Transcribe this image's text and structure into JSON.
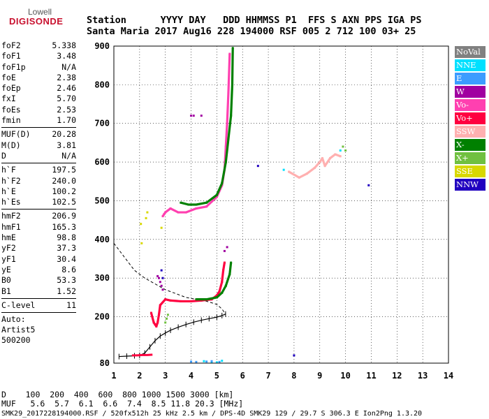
{
  "logo": {
    "line1": "Lowell",
    "line2": "DIGISONDE"
  },
  "header": {
    "line1": "Station      YYYY DAY   DDD HHMMSS P1  FFS S AXN PPS IGA PS",
    "line2": "Santa Maria 2017 Aug16 228 194000 RSF 005 2 712 100 03+ 25"
  },
  "params": {
    "group1": [
      {
        "label": "foF2",
        "value": "5.338"
      },
      {
        "label": "foF1",
        "value": "3.48"
      },
      {
        "label": "foF1p",
        "value": "N/A"
      },
      {
        "label": "foE",
        "value": "2.38"
      },
      {
        "label": "foEp",
        "value": "2.46"
      },
      {
        "label": "fxI",
        "value": "5.70"
      },
      {
        "label": "foEs",
        "value": "2.53"
      },
      {
        "label": "fmin",
        "value": "1.70"
      }
    ],
    "group2": [
      {
        "label": "MUF(D)",
        "value": "20.28"
      },
      {
        "label": "M(D)",
        "value": "3.81"
      },
      {
        "label": "D",
        "value": "N/A"
      }
    ],
    "group3": [
      {
        "label": "h`F",
        "value": "197.5"
      },
      {
        "label": "h`F2",
        "value": "240.0"
      },
      {
        "label": "h`E",
        "value": "100.2"
      },
      {
        "label": "h`Es",
        "value": "102.5"
      }
    ],
    "group4": [
      {
        "label": "hmF2",
        "value": "206.9"
      },
      {
        "label": "hmF1",
        "value": "165.3"
      },
      {
        "label": "hmE",
        "value": "98.8"
      },
      {
        "label": "yF2",
        "value": "37.3"
      },
      {
        "label": "yF1",
        "value": "30.4"
      },
      {
        "label": "yE",
        "value": "8.6"
      },
      {
        "label": "B0",
        "value": "53.3"
      },
      {
        "label": "B1",
        "value": "1.52"
      }
    ],
    "group5": [
      {
        "label": "C-level",
        "value": "11"
      }
    ]
  },
  "autoscale": {
    "line1": "Auto:",
    "line2": "Artist5",
    "line3": "500200"
  },
  "legend": [
    {
      "label": "NoVal",
      "color": "#808080"
    },
    {
      "label": "NNE",
      "color": "#00e0ff"
    },
    {
      "label": "E",
      "color": "#3c9cff"
    },
    {
      "label": "W",
      "color": "#a000a0"
    },
    {
      "label": "Vo-",
      "color": "#ff40b0"
    },
    {
      "label": "Vo+",
      "color": "#ff0040"
    },
    {
      "label": "SSW",
      "color": "#ffb0b0"
    },
    {
      "label": "X-",
      "color": "#008000"
    },
    {
      "label": "X+",
      "color": "#70c040"
    },
    {
      "label": "SSE",
      "color": "#d8d800"
    },
    {
      "label": "NNW",
      "color": "#2000c0"
    }
  ],
  "footer": {
    "line1": "D    100  200  400  600  800 1000 1500 3000 [km]",
    "line2": "MUF   5.6  5.7  6.1  6.6  7.4  8.5 11.8 20.3 [MHz]",
    "line3": "SMK29_2017228194000.RSF / 520fx512h 25 kHz 2.5 km / DPS-4D SMK29 129 / 29.7 S 306.3 E Ion2Png 1.3.20"
  },
  "chart_data": {
    "type": "scatter",
    "xlabel": "",
    "ylabel": "",
    "xlim": [
      1,
      14
    ],
    "ylim": [
      80,
      900
    ],
    "xticks": [
      1,
      2,
      3,
      4,
      5,
      6,
      7,
      8,
      9,
      10,
      11,
      12,
      13,
      14
    ],
    "yticks": [
      80,
      200,
      300,
      400,
      500,
      600,
      700,
      800,
      900
    ],
    "grid": true,
    "series": [
      {
        "name": "Vo+",
        "color": "#ff0040",
        "x": [
          2.45,
          2.55,
          2.6,
          2.65,
          2.7,
          2.75,
          2.8,
          3.0,
          3.2,
          3.6,
          4.0,
          4.4,
          4.8,
          5.0,
          5.1,
          5.2,
          5.25,
          5.3
        ],
        "y": [
          210,
          185,
          180,
          175,
          185,
          205,
          230,
          245,
          242,
          240,
          240,
          242,
          245,
          255,
          265,
          290,
          320,
          340
        ]
      },
      {
        "name": "Vo-",
        "color": "#ff40b0",
        "x": [
          2.9,
          2.95,
          3.0,
          3.2,
          3.5,
          3.8,
          4.2,
          4.6,
          5.0,
          5.2,
          5.3,
          5.35,
          5.4,
          5.45,
          5.5
        ],
        "y": [
          460,
          465,
          470,
          480,
          470,
          470,
          480,
          485,
          510,
          540,
          580,
          640,
          700,
          780,
          880
        ]
      },
      {
        "name": "X-",
        "color": "#008000",
        "x": [
          3.6,
          3.9,
          4.2,
          4.6,
          5.0,
          5.2,
          5.35,
          5.45,
          5.55,
          5.6,
          5.62
        ],
        "y": [
          495,
          490,
          490,
          495,
          515,
          545,
          600,
          660,
          720,
          800,
          895
        ]
      },
      {
        "name": "X-",
        "color": "#008000",
        "x": [
          4.2,
          4.6,
          5.0,
          5.2,
          5.35,
          5.5,
          5.55
        ],
        "y": [
          245,
          245,
          250,
          262,
          280,
          310,
          340
        ]
      },
      {
        "name": "W",
        "color": "#a000a0",
        "x": [
          2.7,
          2.75,
          2.8,
          2.85,
          2.9,
          4.0,
          4.1,
          4.4,
          5.3,
          5.4
        ],
        "y": [
          305,
          300,
          290,
          280,
          270,
          720,
          720,
          720,
          370,
          380
        ]
      },
      {
        "name": "SSW",
        "color": "#ffb0b0",
        "x": [
          7.8,
          8.2,
          8.5,
          8.8,
          9.0,
          9.1,
          9.2,
          9.4,
          9.6,
          9.8
        ],
        "y": [
          575,
          560,
          570,
          585,
          600,
          610,
          590,
          610,
          620,
          615
        ]
      },
      {
        "name": "NNE",
        "color": "#00e0ff",
        "x": [
          4.5,
          4.8,
          5.0,
          5.2,
          7.6,
          9.8
        ],
        "y": [
          85,
          83,
          82,
          86,
          580,
          630
        ]
      },
      {
        "name": "SSE",
        "color": "#d8d800",
        "x": [
          2.05,
          2.08,
          2.25,
          2.3,
          2.85
        ],
        "y": [
          440,
          390,
          455,
          470,
          430
        ]
      },
      {
        "name": "NNW",
        "color": "#2000c0",
        "x": [
          2.85,
          2.9,
          6.6,
          8.0,
          10.9
        ],
        "y": [
          320,
          300,
          590,
          100,
          540
        ]
      },
      {
        "name": "E",
        "color": "#3c9cff",
        "x": [
          4.0,
          4.2,
          4.6,
          4.8,
          5.1
        ],
        "y": [
          84,
          83,
          84,
          85,
          83
        ]
      },
      {
        "name": "X+",
        "color": "#70c040",
        "x": [
          3.0,
          3.05,
          3.1,
          9.9,
          10.0
        ],
        "y": [
          185,
          195,
          205,
          640,
          630
        ]
      }
    ],
    "profile": {
      "name": "profile",
      "x": [
        1.2,
        1.5,
        1.8,
        2.0,
        2.2,
        2.4,
        2.6,
        2.8,
        3.0,
        3.2,
        3.5,
        3.8,
        4.1,
        4.4,
        4.7,
        5.0,
        5.2,
        5.34
      ],
      "y": [
        97,
        98,
        99,
        100,
        106,
        122,
        138,
        150,
        158,
        165,
        173,
        180,
        186,
        191,
        195,
        199,
        203,
        207
      ]
    },
    "trace": {
      "name": "trace",
      "x": [
        1.0,
        1.4,
        1.8,
        2.2,
        2.6,
        3.0,
        3.4,
        3.8,
        4.2,
        4.6,
        5.0,
        5.2,
        5.34
      ],
      "y": [
        390,
        355,
        320,
        300,
        285,
        270,
        260,
        250,
        245,
        240,
        232,
        220,
        207
      ]
    },
    "low_echo": {
      "name": "Es",
      "color": "#ff0040",
      "x": [
        1.7,
        1.9,
        2.1,
        2.3,
        2.5
      ],
      "y": [
        100,
        100,
        101,
        101,
        102
      ]
    }
  }
}
